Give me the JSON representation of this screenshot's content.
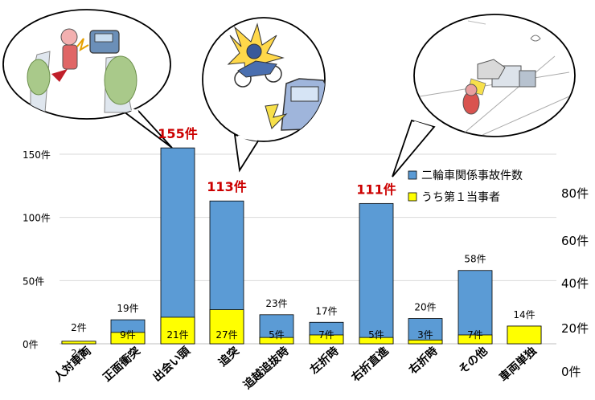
{
  "chart_data": {
    "type": "bar",
    "categories": [
      "人対車両",
      "正面衝突",
      "出会い頭",
      "追突",
      "追越追抜時",
      "左折時",
      "右折直進",
      "右折時",
      "その他",
      "車両単独"
    ],
    "series": [
      {
        "name": "二輪車関係事故件数",
        "values": [
          2,
          19,
          155,
          113,
          23,
          17,
          111,
          20,
          58,
          14
        ],
        "color": "#5b9bd5"
      },
      {
        "name": "うち第１当事者",
        "values": [
          2,
          9,
          21,
          27,
          5,
          7,
          5,
          3,
          7,
          14
        ],
        "color": "#ffff00"
      }
    ],
    "total_labels": [
      "2件",
      "19件",
      "155件",
      "113件",
      "23件",
      "17件",
      "111件",
      "20件",
      "58件",
      "14件"
    ],
    "inner_labels": [
      "2件",
      "9件",
      "21件",
      "27件",
      "5件",
      "7件",
      "5件",
      "3件",
      "7件",
      ""
    ],
    "highlight_color": "#cc0000",
    "ylim": [
      0,
      150
    ],
    "left_ticks": [
      "0件",
      "50件",
      "100件",
      "150件"
    ],
    "right_ticks": [
      "0件",
      "20件",
      "40件",
      "60件",
      "80件"
    ],
    "grid": true,
    "legend_position": "upper-right"
  },
  "illustrations": [
    {
      "icon": "motorcycle-head-on-collision-illustration"
    },
    {
      "icon": "motorcycle-rear-end-collision-illustration"
    },
    {
      "icon": "motorcycle-right-turn-collision-illustration"
    }
  ]
}
